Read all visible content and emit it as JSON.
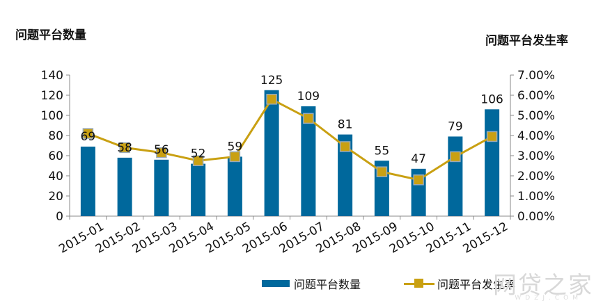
{
  "chart_data": {
    "type": "bar",
    "left_axis_title": "问题平台数量",
    "right_axis_title": "问题平台发生率",
    "categories": [
      "2015-01",
      "2015-02",
      "2015-03",
      "2015-04",
      "2015-05",
      "2015-06",
      "2015-07",
      "2015-08",
      "2015-09",
      "2015-10",
      "2015-11",
      "2015-12"
    ],
    "series": [
      {
        "name": "问题平台数量",
        "type": "bar",
        "axis": "left",
        "color": "#00689c",
        "values": [
          69,
          58,
          56,
          52,
          59,
          125,
          109,
          81,
          55,
          47,
          79,
          106
        ]
      },
      {
        "name": "问题平台发生率",
        "type": "line",
        "axis": "right",
        "color": "#c9a012",
        "values": [
          4.1,
          3.4,
          3.15,
          2.75,
          2.95,
          5.8,
          4.85,
          3.45,
          2.2,
          1.8,
          2.95,
          3.95
        ]
      }
    ],
    "left_ylim": [
      0,
      140
    ],
    "left_ticks": [
      "0",
      "20",
      "40",
      "60",
      "80",
      "100",
      "120",
      "140"
    ],
    "right_ylim": [
      0,
      7
    ],
    "right_ticks": [
      "0.00%",
      "1.00%",
      "2.00%",
      "3.00%",
      "4.00%",
      "5.00%",
      "6.00%",
      "7.00%"
    ],
    "grid": false,
    "legend_position": "bottom"
  },
  "watermark": {
    "main": "网贷之家",
    "sub": "WDZJ.COM"
  }
}
